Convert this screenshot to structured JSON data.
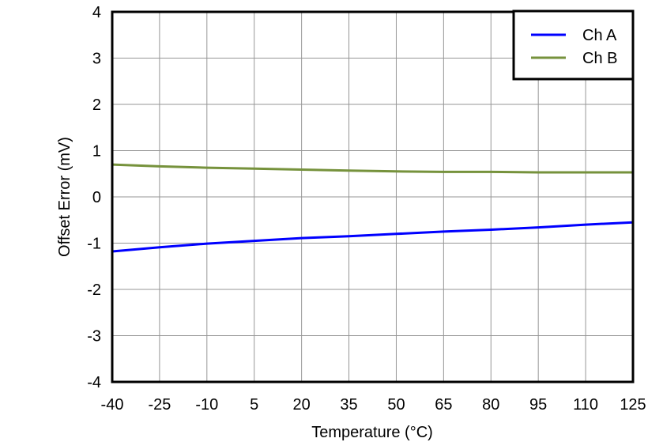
{
  "chart_data": {
    "type": "line",
    "title": "",
    "xlabel": "Temperature (°C)",
    "ylabel": "Offset Error (mV)",
    "xlim": [
      -40,
      125
    ],
    "ylim": [
      -4,
      4
    ],
    "x_ticks": [
      -40,
      -25,
      -10,
      5,
      20,
      35,
      50,
      65,
      80,
      95,
      110,
      125
    ],
    "y_ticks": [
      -4,
      -3,
      -2,
      -1,
      0,
      1,
      2,
      3,
      4
    ],
    "grid": true,
    "legend_position": "upper right",
    "x": [
      -40,
      -25,
      -10,
      5,
      20,
      35,
      50,
      65,
      80,
      95,
      110,
      125
    ],
    "series": [
      {
        "name": "Ch A",
        "color": "#0000ff",
        "values": [
          -1.18,
          -1.09,
          -1.01,
          -0.95,
          -0.89,
          -0.85,
          -0.8,
          -0.75,
          -0.71,
          -0.66,
          -0.6,
          -0.55
        ]
      },
      {
        "name": "Ch B",
        "color": "#76923c",
        "values": [
          0.7,
          0.66,
          0.63,
          0.61,
          0.59,
          0.57,
          0.55,
          0.54,
          0.54,
          0.53,
          0.53,
          0.53
        ]
      }
    ]
  }
}
